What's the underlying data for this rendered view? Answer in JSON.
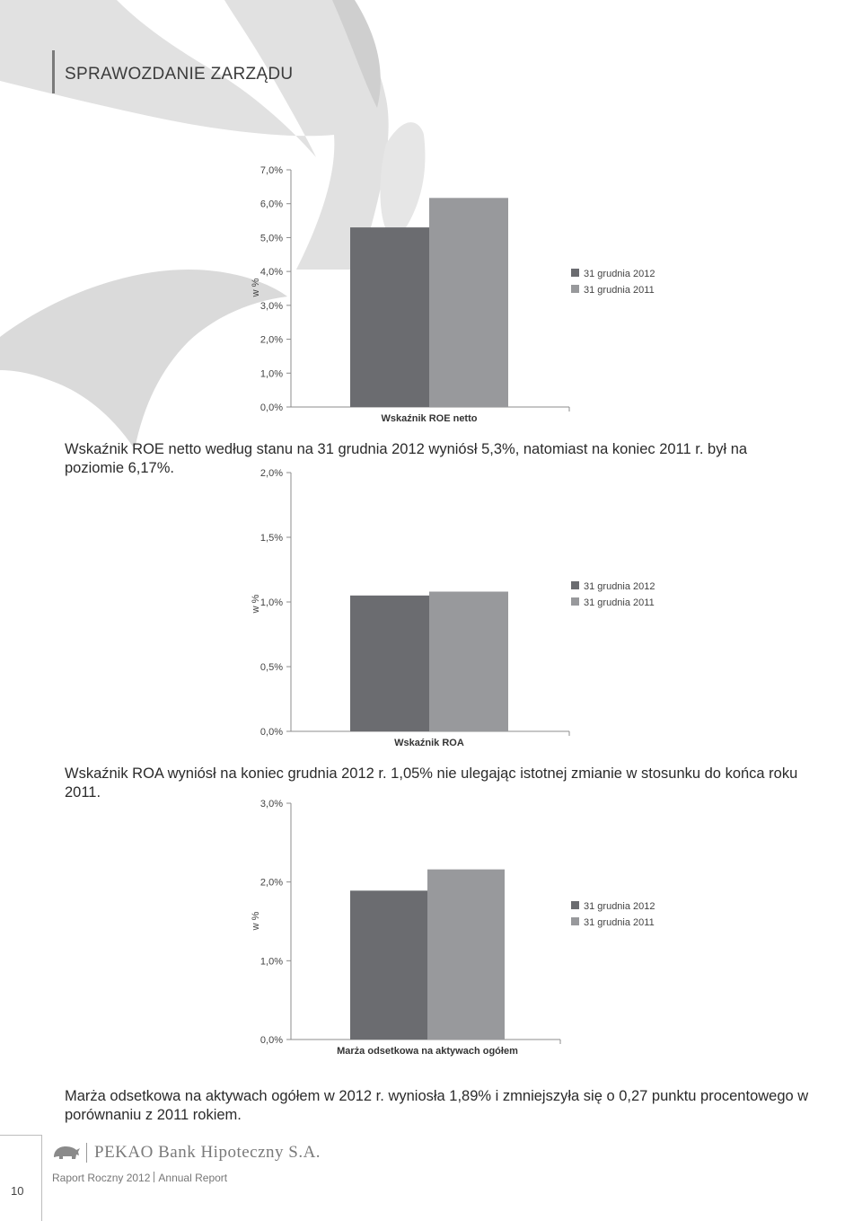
{
  "header": {
    "title": "SPRAWOZDANIE ZARZĄDU"
  },
  "chart_data": [
    {
      "type": "bar",
      "categories": [
        "Wskaźnik ROE netto"
      ],
      "series": [
        {
          "name": "31 grudnia 2012",
          "values": [
            5.3
          ],
          "color": "#6b6c70"
        },
        {
          "name": "31 grudnia 2011",
          "values": [
            6.17
          ],
          "color": "#98999c"
        }
      ],
      "ylabel": "w %",
      "ylim": [
        0,
        7
      ],
      "yticks": [
        0,
        1,
        2,
        3,
        4,
        5,
        6,
        7
      ],
      "ytick_labels": [
        "0,0%",
        "1,0%",
        "2,0%",
        "3,0%",
        "4,0%",
        "5,0%",
        "6,0%",
        "7,0%"
      ],
      "legend": "right"
    },
    {
      "type": "bar",
      "categories": [
        "Wskaźnik ROA"
      ],
      "series": [
        {
          "name": "31 grudnia 2012",
          "values": [
            1.05
          ],
          "color": "#6b6c70"
        },
        {
          "name": "31 grudnia 2011",
          "values": [
            1.08
          ],
          "color": "#98999c"
        }
      ],
      "ylabel": "w %",
      "ylim": [
        0,
        2
      ],
      "yticks": [
        0,
        0.5,
        1,
        1.5,
        2
      ],
      "ytick_labels": [
        "0,0%",
        "0,5%",
        "1,0%",
        "1,5%",
        "2,0%"
      ],
      "legend": "right"
    },
    {
      "type": "bar",
      "categories": [
        "Marża odsetkowa na aktywach ogółem"
      ],
      "series": [
        {
          "name": "31 grudnia 2012",
          "values": [
            1.89
          ],
          "color": "#6b6c70"
        },
        {
          "name": "31 grudnia 2011",
          "values": [
            2.16
          ],
          "color": "#98999c"
        }
      ],
      "ylabel": "w %",
      "ylim": [
        0,
        3
      ],
      "yticks": [
        0,
        1,
        2,
        3
      ],
      "ytick_labels": [
        "0,0%",
        "1,0%",
        "2,0%",
        "3,0%"
      ],
      "legend": "right"
    }
  ],
  "captions": [
    "Wskaźnik ROE netto według stanu na 31 grudnia 2012 wyniósł 5,3%, natomiast na koniec 2011 r. był na poziomie 6,17%.",
    "Wskaźnik ROA wyniósł na koniec grudnia 2012 r. 1,05% nie ulegając istotnej zmianie w stosunku do końca roku 2011.",
    "Marża odsetkowa na aktywach ogółem w 2012 r. wyniosła 1,89% i zmniejszyła się o 0,27 punktu procentowego w porównaniu z 2011 rokiem."
  ],
  "footer": {
    "page_number": "10",
    "bank_name": "PEKAO Bank Hipoteczny S.A.",
    "report_pl": "Raport Roczny 2012",
    "report_en": "Annual Report"
  }
}
